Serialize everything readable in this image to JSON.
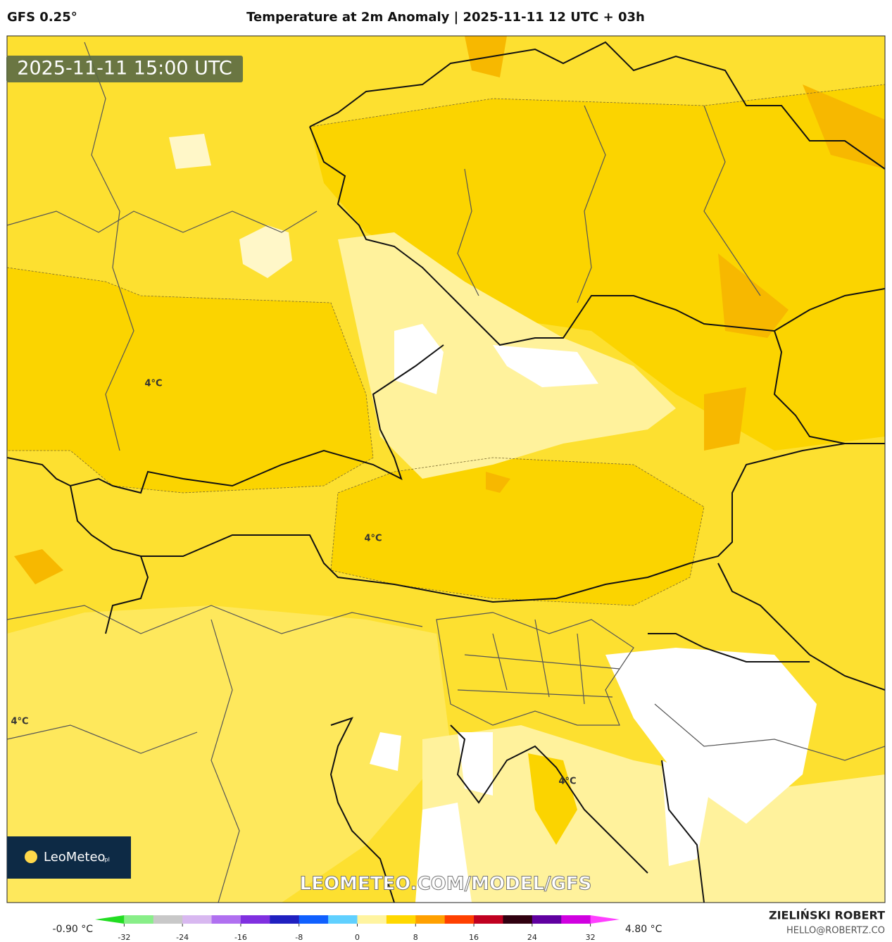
{
  "header": {
    "model": "GFS 0.25°",
    "title": "Temperature at 2m Anomaly | 2025-11-11 12 UTC + 03h"
  },
  "map": {
    "timestamp": "2025-11-11 15:00 UTC",
    "contour_labels": [
      "4°C",
      "4°C",
      "4°C",
      "4°C"
    ],
    "logo": "LeoMeteo",
    "logo_suffix": ".pl",
    "watermark": "LEOMETEO.COM/MODEL/GFS"
  },
  "colorbar": {
    "min_label": "-0.90 °C",
    "max_label": "4.80 °C",
    "lim": [
      -36,
      36
    ],
    "ticks": [
      -32,
      -24,
      -16,
      -8,
      0,
      8,
      16,
      24,
      32
    ],
    "colors": [
      "#22dd22",
      "#88ee88",
      "#c8c8c8",
      "#d8b8f0",
      "#b070f0",
      "#8030e0",
      "#2020c0",
      "#1060ff",
      "#60d0ff",
      "#fff4a0",
      "#ffd800",
      "#ffa000",
      "#ff4000",
      "#c00020",
      "#300010",
      "#6000a0",
      "#d000e0",
      "#ff40ff"
    ]
  },
  "footer": {
    "author": "ZIELIŃSKI ROBERT",
    "contact": "HELLO@ROBERTZ.CO"
  }
}
